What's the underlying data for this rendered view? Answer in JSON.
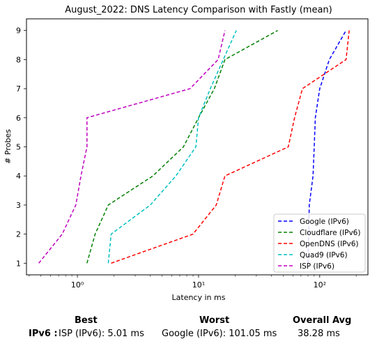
{
  "chart_data": {
    "type": "line",
    "title": "August_2022: DNS Latency Comparison with Fastly (mean)",
    "xlabel": "Latency in ms",
    "ylabel": "# Probes",
    "xscale": "log",
    "xlim": [
      0.38,
      250
    ],
    "ylim": [
      0.6,
      9.4
    ],
    "x_ticks": [
      {
        "value": 1,
        "label": "10⁰"
      },
      {
        "value": 10,
        "label": "10¹"
      },
      {
        "value": 100,
        "label": "10²"
      }
    ],
    "y_ticks": [
      1,
      2,
      3,
      4,
      5,
      6,
      7,
      8,
      9
    ],
    "grid": false,
    "legend_position": "lower-right",
    "series": [
      {
        "name": "Google (IPv6)",
        "color": "#0000ff",
        "x": [
          80,
          81,
          82,
          88,
          90,
          92,
          100,
          120,
          165
        ],
        "y": [
          1,
          2,
          3,
          4,
          5,
          6,
          7,
          8,
          9
        ]
      },
      {
        "name": "Cloudflare (IPv6)",
        "color": "#008000",
        "x": [
          1.2,
          1.4,
          1.8,
          4.2,
          7.5,
          10,
          13.5,
          16.5,
          45
        ],
        "y": [
          1,
          2,
          3,
          4,
          5,
          6,
          7,
          8,
          9
        ]
      },
      {
        "name": "OpenDNS (IPv6)",
        "color": "#ff0000",
        "x": [
          1.9,
          9,
          14,
          16.5,
          55,
          62,
          72,
          165,
          175
        ],
        "y": [
          1,
          2,
          3,
          4,
          5,
          6,
          7,
          8,
          9
        ]
      },
      {
        "name": "Quad9 (IPv6)",
        "color": "#00bfbf",
        "x": [
          1.8,
          1.9,
          4,
          6.5,
          9.5,
          10,
          12.5,
          16,
          20.5
        ],
        "y": [
          1,
          2,
          3,
          4,
          5,
          6,
          7,
          8,
          9
        ]
      },
      {
        "name": "ISP (IPv6)",
        "color": "#bf00bf",
        "x": [
          0.48,
          0.75,
          0.97,
          1.07,
          1.2,
          1.2,
          8.5,
          14.5,
          16.5
        ],
        "y": [
          1,
          2,
          3,
          4,
          5,
          6,
          7,
          8,
          9
        ]
      }
    ]
  },
  "summary": {
    "best_header": "Best",
    "worst_header": "Worst",
    "avg_header": "Overall Avg",
    "row_label": "IPv6 :",
    "best_value": "ISP (IPv6): 5.01 ms",
    "worst_value": "Google (IPv6): 101.05 ms",
    "avg_value": "38.28 ms"
  }
}
